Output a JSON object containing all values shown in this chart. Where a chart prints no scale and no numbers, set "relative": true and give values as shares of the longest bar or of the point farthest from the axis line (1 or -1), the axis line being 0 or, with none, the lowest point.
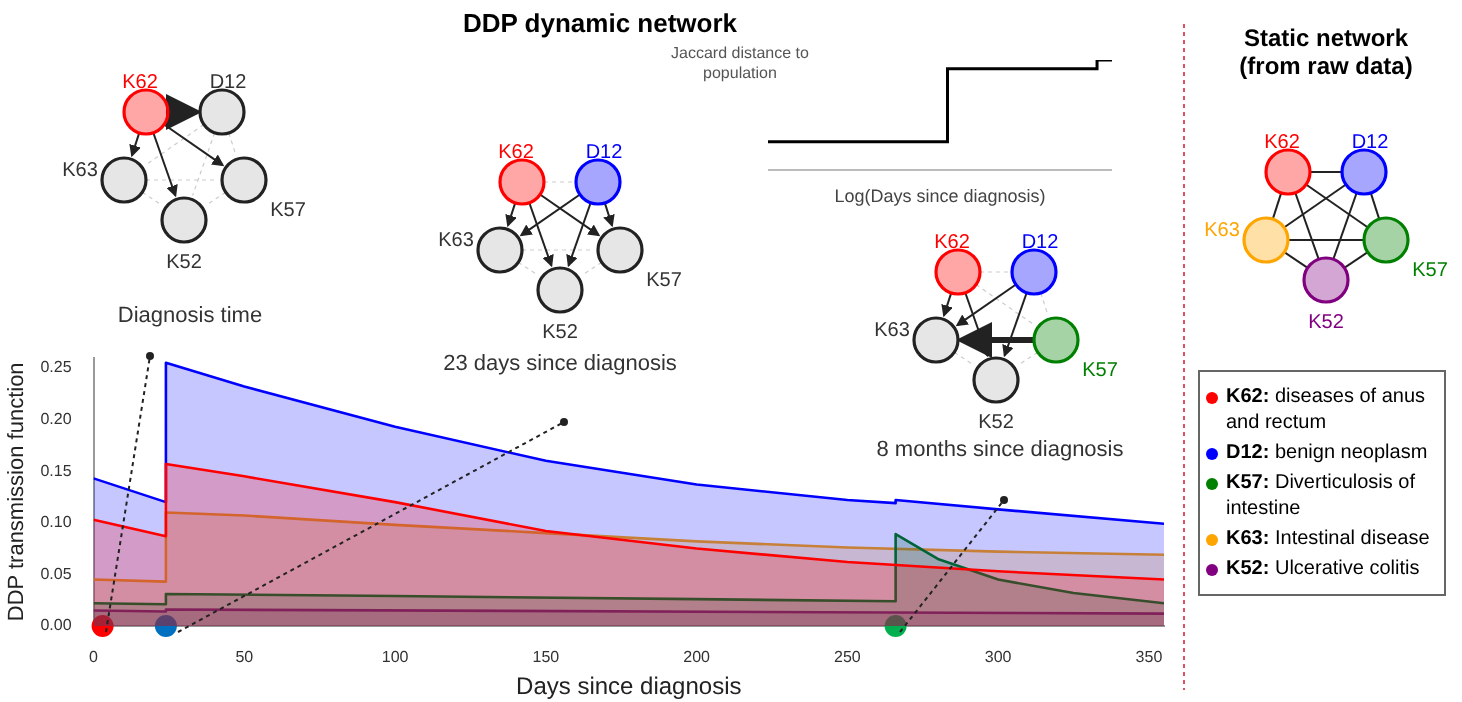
{
  "chart_data": [
    {
      "type": "area",
      "xlabel": "Days since diagnosis",
      "ylabel": "DDP transmission function",
      "xlim": [
        0,
        355
      ],
      "xticks": [
        0,
        50,
        100,
        150,
        200,
        250,
        300,
        350
      ],
      "ylim": [
        0,
        0.26
      ],
      "yticks": [
        {
          "value": 0,
          "label": "0.00"
        },
        0.05,
        {
          "value": 0.1,
          "label": "0.10"
        },
        0.15,
        {
          "value": 0.2,
          "label": "0.20"
        },
        0.25
      ],
      "grid": false,
      "legend": "right",
      "marker": "none",
      "annotations": [
        "Diagnosis time",
        "23 days since diagnosis",
        "8 months since diagnosis",
        "Static network (from raw data)",
        "DDP dynamic network",
        "K62",
        "D12",
        "K63",
        "K57",
        "K52",
        "K62",
        "D12",
        "K63",
        "K57",
        "K52",
        "K62",
        "D12",
        "K63",
        "K57",
        "K52",
        "K62",
        "D12",
        "K63",
        "K57",
        "K52"
      ],
      "series": [
        {
          "name": "K62: diseases of anus and rectum",
          "color": "#ff0000",
          "x": [
            0,
            24,
            24,
            50,
            100,
            150,
            200,
            250,
            300,
            355
          ],
          "values": [
            0.103,
            0.087,
            0.157,
            0.145,
            0.12,
            0.092,
            0.075,
            0.062,
            0.053,
            0.045
          ]
        },
        {
          "name": "D12: benign neoplasm",
          "color": "#0000ff",
          "x": [
            0,
            24,
            24,
            50,
            100,
            150,
            200,
            250,
            266,
            266,
            300,
            355
          ],
          "values": [
            0.143,
            0.12,
            0.255,
            0.232,
            0.193,
            0.16,
            0.137,
            0.122,
            0.119,
            0.122,
            0.113,
            0.099
          ]
        },
        {
          "name": "K57: Diverticulosis of intestine",
          "color": "#008000",
          "x": [
            0,
            24,
            24,
            100,
            200,
            266,
            266,
            280,
            300,
            325,
            355
          ],
          "values": [
            0.022,
            0.021,
            0.031,
            0.029,
            0.026,
            0.024,
            0.089,
            0.065,
            0.045,
            0.032,
            0.022
          ]
        },
        {
          "name": "K63: Intestinal disease",
          "color": "#ffa500",
          "x": [
            0,
            24,
            24,
            50,
            100,
            150,
            200,
            250,
            300,
            355
          ],
          "values": [
            0.045,
            0.043,
            0.11,
            0.107,
            0.098,
            0.09,
            0.082,
            0.076,
            0.072,
            0.069
          ]
        },
        {
          "name": "K52: Ulcerative colitis",
          "color": "#800080",
          "x": [
            0,
            24,
            24,
            355
          ],
          "values": [
            0.015,
            0.014,
            0.016,
            0.012
          ]
        },
        {
          "type": "scatter",
          "marker": "circle",
          "x": [
            3,
            24,
            266
          ],
          "values": [
            0,
            0,
            0
          ],
          "colors": [
            "#ff0000",
            "#0070c0",
            "#00b050"
          ]
        }
      ]
    },
    {
      "type": "step",
      "title": "Jaccard distance to population",
      "xlabel": "Log(Days since diagnosis)",
      "relative": true,
      "color": "#000000",
      "categories": [
        null,
        null,
        null,
        null,
        null,
        null,
        null,
        null,
        null,
        null,
        null,
        null,
        null,
        null,
        null,
        null,
        null,
        null,
        null,
        null,
        null,
        null,
        null,
        null
      ],
      "values": [
        0.26,
        0.26,
        0.26,
        0.26,
        0.26,
        0.26,
        0.26,
        0.26,
        0.26,
        0.26,
        0.26,
        0.26,
        0.26,
        0.92,
        0.92,
        0.92,
        0.92,
        0.92,
        0.92,
        0.92,
        0.92,
        0.92,
        0.92,
        1
      ]
    }
  ]
}
